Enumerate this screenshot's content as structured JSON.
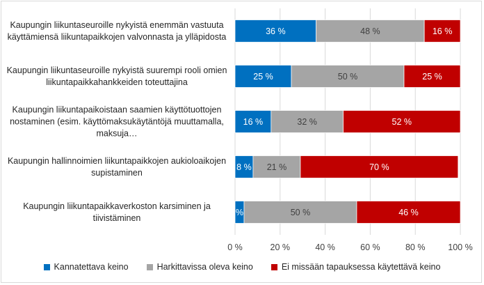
{
  "chart_data": {
    "type": "bar",
    "orientation": "horizontal",
    "stacked": true,
    "percent_stacked": true,
    "categories": [
      "Kaupungin liikuntaseuroille nykyistä enemmän vastuuta käyttämiensä liikuntapaikkojen valvonnasta ja ylläpidosta",
      "Kaupungin liikuntaseuroille nykyistä suurempi rooli omien liikuntapaikkahankkeiden toteuttajina",
      "Kaupungin liikuntapaikoistaan saamien käyttötuottojen nostaminen (esim. käyttömaksukäytäntöjä muuttamalla, maksuja…",
      "Kaupungin hallinnoimien liikuntapaikkojen aukioloaikojen supistaminen",
      "Kaupungin liikuntapaikkaverkoston karsiminen ja tiivistäminen"
    ],
    "series": [
      {
        "name": "Kannatettava keino",
        "color": "#0070c0",
        "values": [
          36,
          25,
          16,
          8,
          4
        ],
        "labels": [
          "36 %",
          "25 %",
          "16 %",
          "8 %",
          "%"
        ]
      },
      {
        "name": "Harkittavissa oleva keino",
        "color": "#a5a5a5",
        "values": [
          48,
          50,
          32,
          21,
          50
        ],
        "labels": [
          "48 %",
          "50 %",
          "32 %",
          "21 %",
          "50 %"
        ]
      },
      {
        "name": "Ei missään tapauksessa käytettävä keino",
        "color": "#c00000",
        "values": [
          16,
          25,
          52,
          70,
          46
        ],
        "labels": [
          "16 %",
          "25 %",
          "52 %",
          "70 %",
          "46 %"
        ]
      }
    ],
    "xlim": [
      0,
      100
    ],
    "xticks": [
      "0 %",
      "20 %",
      "40 %",
      "60 %",
      "80 %",
      "100 %"
    ],
    "grid": true,
    "legend_position": "bottom"
  }
}
